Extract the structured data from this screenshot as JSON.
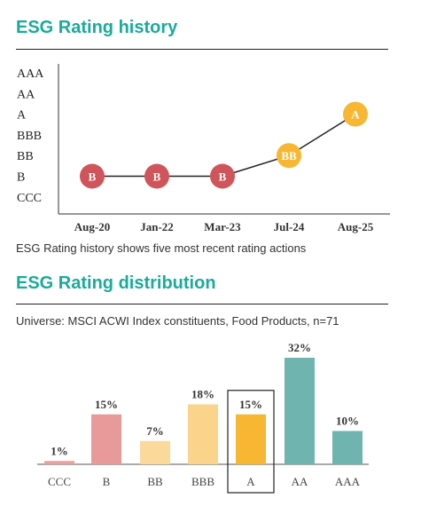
{
  "history": {
    "title": "ESG Rating history",
    "caption": "ESG Rating history shows five most recent rating actions"
  },
  "distribution": {
    "title": "ESG Rating distribution",
    "caption": "Universe: MSCI ACWI Index constituents, Food Products, n=71"
  },
  "colors": {
    "teal": "#1aab9b",
    "red": "#d0555a",
    "amber": "#f7b733",
    "bar_ccc": "#eba0a0",
    "bar_b": "#e89a9a",
    "bar_bb": "#fbd99a",
    "bar_bbb": "#fbd48c",
    "bar_a": "#f7b733",
    "bar_aa": "#6fb4ae",
    "bar_aaa": "#6fb4ae"
  },
  "chart_data": [
    {
      "type": "line",
      "y_categories": [
        "AAA",
        "AA",
        "A",
        "BBB",
        "BB",
        "B",
        "CCC"
      ],
      "x": [
        "Aug-20",
        "Jan-22",
        "Mar-23",
        "Jul-24",
        "Aug-25"
      ],
      "ratings": [
        "B",
        "B",
        "B",
        "BB",
        "A"
      ],
      "marker_colors": [
        "#d0555a",
        "#d0555a",
        "#d0555a",
        "#f7b733",
        "#f7b733"
      ]
    },
    {
      "type": "bar",
      "categories": [
        "CCC",
        "B",
        "BB",
        "BBB",
        "A",
        "AA",
        "AAA"
      ],
      "values": [
        1,
        15,
        7,
        18,
        15,
        32,
        10
      ],
      "labels": [
        "1%",
        "15%",
        "7%",
        "18%",
        "15%",
        "32%",
        "10%"
      ],
      "highlighted": "A",
      "ylim": [
        0,
        32
      ],
      "bar_colors": [
        "#eba0a0",
        "#e89a9a",
        "#fbd99a",
        "#fbd48c",
        "#f7b733",
        "#6fb4ae",
        "#6fb4ae"
      ]
    }
  ]
}
